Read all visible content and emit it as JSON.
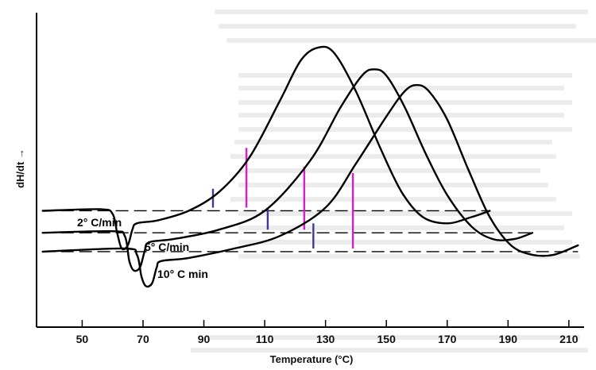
{
  "chart_data": {
    "type": "line",
    "xlabel": "Temperature (°C)",
    "ylabel": "dH/dt →",
    "x_ticks": [
      50,
      70,
      90,
      110,
      130,
      150,
      170,
      190,
      210
    ],
    "xlim": [
      35,
      215
    ],
    "ylim": [
      0,
      1
    ],
    "grid": false,
    "legend": "none",
    "series": [
      {
        "name": "2° C/min",
        "points": [
          [
            37,
            0.37
          ],
          [
            56,
            0.375
          ],
          [
            60,
            0.36
          ],
          [
            61.5,
            0.3
          ],
          [
            63,
            0.25
          ],
          [
            65,
            0.26
          ],
          [
            66.5,
            0.31
          ],
          [
            68,
            0.33
          ],
          [
            75,
            0.34
          ],
          [
            85,
            0.37
          ],
          [
            95,
            0.43
          ],
          [
            105,
            0.54
          ],
          [
            115,
            0.72
          ],
          [
            122,
            0.85
          ],
          [
            128,
            0.89
          ],
          [
            133,
            0.87
          ],
          [
            140,
            0.75
          ],
          [
            148,
            0.57
          ],
          [
            155,
            0.43
          ],
          [
            162,
            0.35
          ],
          [
            170,
            0.33
          ],
          [
            178,
            0.35
          ],
          [
            184,
            0.37
          ]
        ],
        "baseline": [
          [
            37,
            0.37
          ],
          [
            184,
            0.37
          ]
        ],
        "markers": [
          {
            "x": 93,
            "y_base": 0.38,
            "y_top": 0.44,
            "color": "#3f3a8f"
          },
          {
            "x": 104,
            "y_base": 0.38,
            "y_top": 0.57,
            "color": "#d61fc7"
          }
        ]
      },
      {
        "name": "5° C/min",
        "points": [
          [
            37,
            0.3
          ],
          [
            60,
            0.305
          ],
          [
            64,
            0.29
          ],
          [
            65.5,
            0.21
          ],
          [
            67,
            0.18
          ],
          [
            69,
            0.19
          ],
          [
            70.5,
            0.24
          ],
          [
            72,
            0.27
          ],
          [
            80,
            0.28
          ],
          [
            95,
            0.31
          ],
          [
            110,
            0.37
          ],
          [
            125,
            0.53
          ],
          [
            135,
            0.7
          ],
          [
            142,
            0.8
          ],
          [
            146,
            0.82
          ],
          [
            150,
            0.8
          ],
          [
            156,
            0.7
          ],
          [
            163,
            0.55
          ],
          [
            170,
            0.42
          ],
          [
            178,
            0.32
          ],
          [
            185,
            0.28
          ],
          [
            192,
            0.28
          ],
          [
            198,
            0.3
          ]
        ],
        "baseline": [
          [
            37,
            0.3
          ],
          [
            198,
            0.3
          ]
        ],
        "markers": [
          {
            "x": 111,
            "y_base": 0.31,
            "y_top": 0.38,
            "color": "#3f3a8f"
          },
          {
            "x": 123,
            "y_base": 0.31,
            "y_top": 0.51,
            "color": "#d61fc7"
          }
        ]
      },
      {
        "name": "10° C min",
        "points": [
          [
            37,
            0.24
          ],
          [
            64,
            0.25
          ],
          [
            68,
            0.23
          ],
          [
            69.5,
            0.16
          ],
          [
            71,
            0.13
          ],
          [
            73,
            0.14
          ],
          [
            74.5,
            0.19
          ],
          [
            76,
            0.21
          ],
          [
            85,
            0.22
          ],
          [
            100,
            0.25
          ],
          [
            115,
            0.29
          ],
          [
            130,
            0.38
          ],
          [
            140,
            0.52
          ],
          [
            150,
            0.67
          ],
          [
            156,
            0.75
          ],
          [
            160,
            0.77
          ],
          [
            164,
            0.75
          ],
          [
            170,
            0.66
          ],
          [
            177,
            0.5
          ],
          [
            184,
            0.35
          ],
          [
            191,
            0.26
          ],
          [
            198,
            0.23
          ],
          [
            205,
            0.23
          ],
          [
            213,
            0.26
          ]
        ],
        "baseline": [
          [
            37,
            0.24
          ],
          [
            213,
            0.24
          ]
        ],
        "markers": [
          {
            "x": 126,
            "y_base": 0.25,
            "y_top": 0.33,
            "color": "#3f3a8f"
          },
          {
            "x": 139,
            "y_base": 0.25,
            "y_top": 0.49,
            "color": "#d61fc7"
          }
        ]
      }
    ]
  }
}
